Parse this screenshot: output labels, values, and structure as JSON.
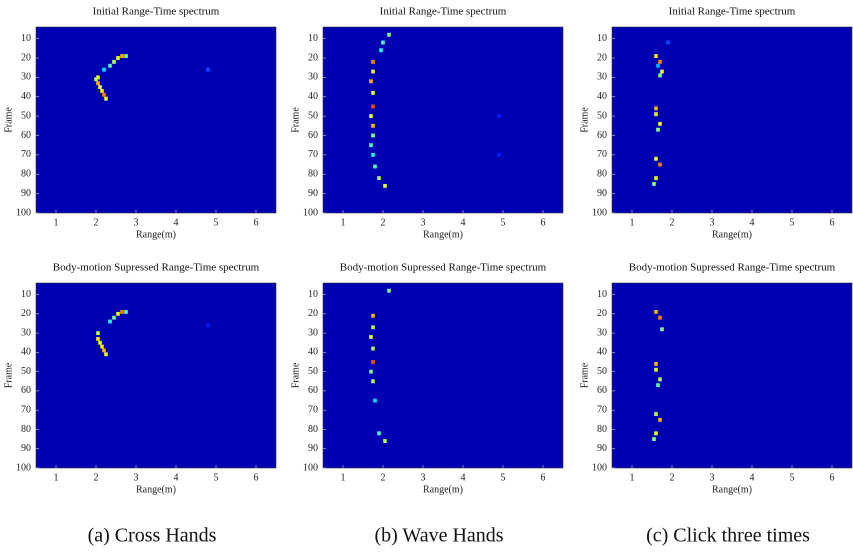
{
  "chart_data": [
    {
      "type": "heatmap",
      "title": "Initial Range-Time spectrum",
      "xlabel": "Range(m)",
      "ylabel": "Frame",
      "colormap": "jet",
      "y_inverted": true,
      "xlim": [
        0.5,
        6.5
      ],
      "xticks": [
        1,
        2,
        3,
        4,
        5,
        6
      ],
      "ylim": [
        4,
        100
      ],
      "yticks": [
        10,
        20,
        30,
        40,
        50,
        60,
        70,
        80,
        90,
        100
      ],
      "x": [
        2.65,
        2.55,
        2.45,
        2.35,
        2.2,
        2.05,
        2.0,
        2.05,
        2.1,
        2.15,
        2.2,
        2.25,
        2.75,
        4.8
      ],
      "y": [
        19,
        20,
        22,
        24,
        26,
        30,
        31,
        33,
        35,
        37,
        39,
        41,
        19,
        26
      ],
      "values": [
        0.7,
        0.6,
        0.55,
        0.45,
        0.35,
        0.6,
        0.55,
        0.7,
        0.6,
        0.65,
        0.75,
        0.6,
        0.5,
        0.2
      ]
    },
    {
      "type": "heatmap",
      "title": "Initial Range-Time spectrum",
      "xlabel": "Range(m)",
      "ylabel": "Frame",
      "colormap": "jet",
      "y_inverted": true,
      "xlim": [
        0.5,
        6.5
      ],
      "xticks": [
        1,
        2,
        3,
        4,
        5,
        6
      ],
      "ylim": [
        4,
        100
      ],
      "yticks": [
        10,
        20,
        30,
        40,
        50,
        60,
        70,
        80,
        90,
        100
      ],
      "x": [
        2.15,
        2.0,
        1.95,
        1.75,
        1.75,
        1.7,
        1.75,
        1.75,
        1.7,
        1.75,
        1.75,
        1.7,
        1.75,
        1.8,
        1.9,
        2.05,
        4.9,
        4.9
      ],
      "y": [
        8,
        12,
        16,
        22,
        27,
        32,
        38,
        45,
        50,
        55,
        60,
        65,
        70,
        76,
        82,
        86,
        50,
        70
      ],
      "values": [
        0.5,
        0.45,
        0.4,
        0.75,
        0.6,
        0.7,
        0.6,
        0.8,
        0.6,
        0.7,
        0.5,
        0.45,
        0.4,
        0.45,
        0.55,
        0.6,
        0.15,
        0.15
      ]
    },
    {
      "type": "heatmap",
      "title": "Initial Range-Time spectrum",
      "xlabel": "Range(m)",
      "ylabel": "Frame",
      "colormap": "jet",
      "y_inverted": true,
      "xlim": [
        0.5,
        6.5
      ],
      "xticks": [
        1,
        2,
        3,
        4,
        5,
        6
      ],
      "ylim": [
        4,
        100
      ],
      "yticks": [
        10,
        20,
        30,
        40,
        50,
        60,
        70,
        80,
        90,
        100
      ],
      "x": [
        1.6,
        1.7,
        1.75,
        1.7,
        1.6,
        1.6,
        1.7,
        1.65,
        1.6,
        1.7,
        1.6,
        1.55,
        1.65,
        1.9
      ],
      "y": [
        19,
        22,
        27,
        29,
        46,
        49,
        54,
        57,
        72,
        75,
        82,
        85,
        24,
        12
      ],
      "values": [
        0.65,
        0.75,
        0.6,
        0.5,
        0.7,
        0.6,
        0.6,
        0.5,
        0.6,
        0.75,
        0.6,
        0.5,
        0.3,
        0.2
      ]
    },
    {
      "type": "heatmap",
      "title": "Body-motion Supressed Range-Time spectrum",
      "xlabel": "Range(m)",
      "ylabel": "Frame",
      "colormap": "jet",
      "y_inverted": true,
      "xlim": [
        0.5,
        6.5
      ],
      "xticks": [
        1,
        2,
        3,
        4,
        5,
        6
      ],
      "ylim": [
        4,
        100
      ],
      "yticks": [
        10,
        20,
        30,
        40,
        50,
        60,
        70,
        80,
        90,
        100
      ],
      "x": [
        2.65,
        2.55,
        2.45,
        2.35,
        2.05,
        2.05,
        2.1,
        2.15,
        2.2,
        2.25,
        2.75,
        4.8
      ],
      "y": [
        19,
        20,
        22,
        24,
        30,
        33,
        35,
        37,
        39,
        41,
        19,
        26
      ],
      "values": [
        0.75,
        0.6,
        0.5,
        0.4,
        0.55,
        0.65,
        0.6,
        0.65,
        0.7,
        0.6,
        0.45,
        0.15
      ]
    },
    {
      "type": "heatmap",
      "title": "Body-motion Supressed Range-Time spectrum",
      "xlabel": "Range(m)",
      "ylabel": "Frame",
      "colormap": "jet",
      "y_inverted": true,
      "xlim": [
        0.5,
        6.5
      ],
      "xticks": [
        1,
        2,
        3,
        4,
        5,
        6
      ],
      "ylim": [
        4,
        100
      ],
      "yticks": [
        10,
        20,
        30,
        40,
        50,
        60,
        70,
        80,
        90,
        100
      ],
      "x": [
        2.15,
        1.75,
        1.75,
        1.7,
        1.75,
        1.75,
        1.7,
        1.75,
        1.8,
        1.9,
        2.05
      ],
      "y": [
        8,
        21,
        27,
        32,
        38,
        45,
        50,
        55,
        65,
        82,
        86
      ],
      "values": [
        0.5,
        0.7,
        0.55,
        0.6,
        0.55,
        0.8,
        0.5,
        0.55,
        0.35,
        0.45,
        0.55
      ]
    },
    {
      "type": "heatmap",
      "title": "Body-motion Supressed Range-Time spectrum",
      "xlabel": "Range(m)",
      "ylabel": "Frame",
      "colormap": "jet",
      "y_inverted": true,
      "xlim": [
        0.5,
        6.5
      ],
      "xticks": [
        1,
        2,
        3,
        4,
        5,
        6
      ],
      "ylim": [
        4,
        100
      ],
      "yticks": [
        10,
        20,
        30,
        40,
        50,
        60,
        70,
        80,
        90,
        100
      ],
      "x": [
        1.6,
        1.7,
        1.75,
        1.6,
        1.6,
        1.7,
        1.65,
        1.6,
        1.7,
        1.6,
        1.55
      ],
      "y": [
        19,
        22,
        28,
        46,
        49,
        54,
        57,
        72,
        75,
        82,
        85
      ],
      "values": [
        0.7,
        0.75,
        0.5,
        0.7,
        0.6,
        0.55,
        0.45,
        0.55,
        0.7,
        0.6,
        0.5
      ]
    }
  ],
  "captions": [
    "(a) Cross Hands",
    "(b) Wave Hands",
    "(c) Click three times"
  ]
}
